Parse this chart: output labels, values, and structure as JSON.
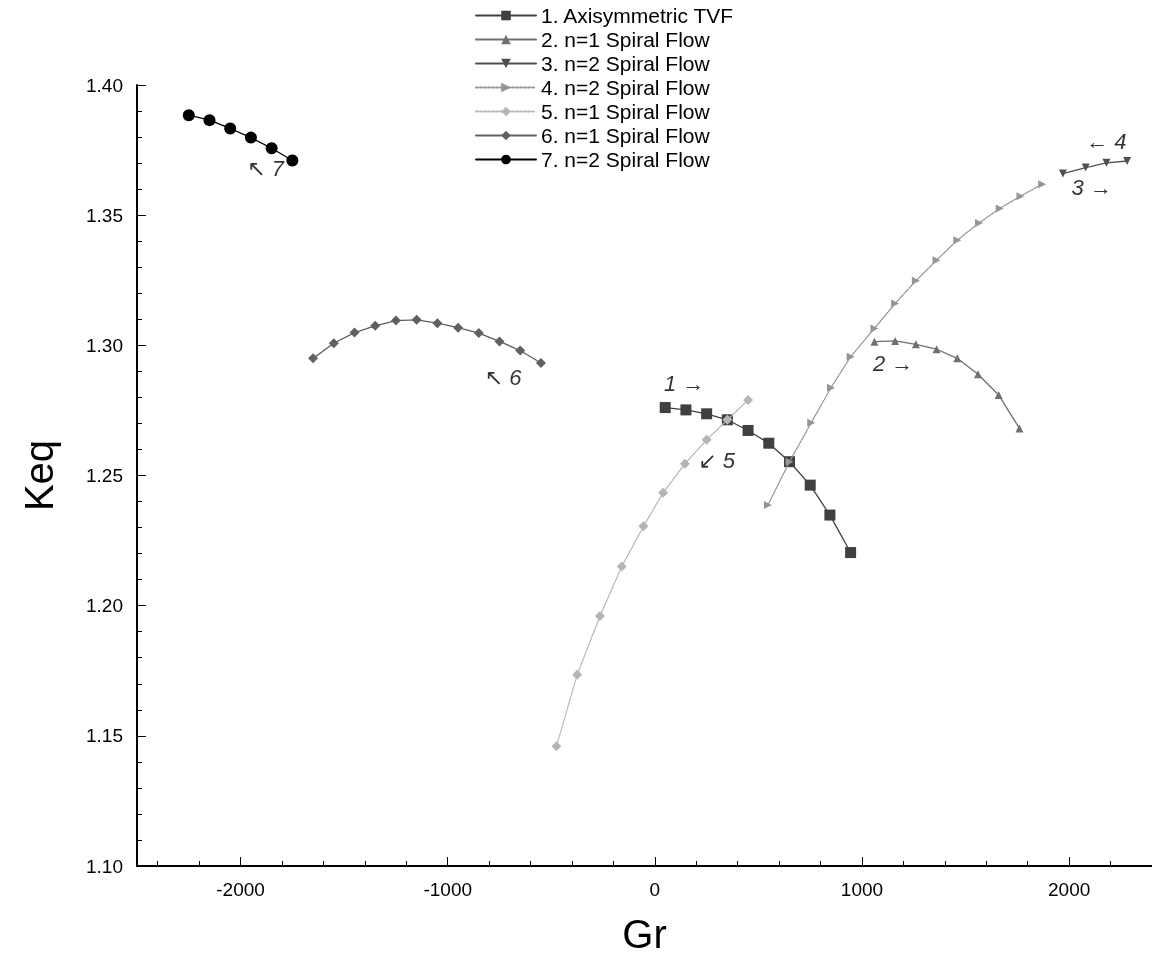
{
  "chart_data": {
    "type": "line",
    "xlabel": "Gr",
    "ylabel": "Keq",
    "xlim": [
      -2500,
      2400
    ],
    "xticks": [
      -2000,
      -1000,
      0,
      1000,
      2000
    ],
    "ylim": [
      1.1,
      1.4
    ],
    "yticks": [
      {
        "value": 1.1,
        "label": "1.10"
      },
      1.15,
      {
        "value": 1.2,
        "label": "1.20"
      },
      1.25,
      {
        "value": 1.3,
        "label": "1.30"
      },
      1.35,
      {
        "value": 1.4,
        "label": "1.40"
      }
    ],
    "grid": false,
    "legend": "top",
    "series": [
      {
        "name": "1. Axisymmetric TVF",
        "color": "#404040",
        "marker": "square",
        "line_style": "solid",
        "x": [
          50,
          150,
          250,
          350,
          450,
          550,
          650,
          750,
          845,
          945
        ],
        "values": [
          1.2761,
          1.2752,
          1.2737,
          1.2714,
          1.2673,
          1.2624,
          1.2553,
          1.2463,
          1.2348,
          1.2204
        ]
      },
      {
        "name": "2. n=1 Spiral Flow",
        "color": "#707070",
        "marker": "triangle",
        "line_style": "solid",
        "x": [
          1060,
          1160,
          1260,
          1360,
          1460,
          1560,
          1660,
          1760
        ],
        "values": [
          1.3014,
          1.3017,
          1.3004,
          1.2985,
          1.295,
          1.2889,
          1.2809,
          1.2681
        ]
      },
      {
        "name": "3. n=2 Spiral Flow",
        "color": "#505050",
        "marker": "triangle-down",
        "line_style": "solid",
        "x": [
          1970,
          2080,
          2180,
          2280
        ],
        "values": [
          1.366,
          1.3683,
          1.3701,
          1.3708
        ]
      },
      {
        "name": "4. n=2 Spiral Flow",
        "color": "#959595",
        "marker": "triangle-right",
        "line_style": "dotted",
        "x": [
          546,
          650,
          755,
          850,
          945,
          1060,
          1160,
          1260,
          1360,
          1460,
          1565,
          1665,
          1765,
          1870
        ],
        "values": [
          1.2387,
          1.2553,
          1.2703,
          1.2837,
          1.2956,
          1.3065,
          1.3161,
          1.3248,
          1.3327,
          1.3404,
          1.347,
          1.3526,
          1.3573,
          1.3619
        ]
      },
      {
        "name": "5. n=1 Spiral Flow",
        "color": "#b5b5b5",
        "marker": "diamond",
        "line_style": "dotted",
        "x": [
          450,
          350,
          250,
          145,
          40,
          -55,
          -160,
          -265,
          -375,
          -475
        ],
        "values": [
          1.279,
          1.2714,
          1.2637,
          1.2545,
          1.2434,
          1.2305,
          1.215,
          1.196,
          1.1735,
          1.146
        ]
      },
      {
        "name": "6. n=1 Spiral Flow",
        "color": "#606060",
        "marker": "diamond",
        "line_style": "solid",
        "x": [
          -1650,
          -1550,
          -1450,
          -1350,
          -1250,
          -1150,
          -1050,
          -950,
          -850,
          -750,
          -650,
          -550
        ],
        "values": [
          1.295,
          1.3008,
          1.3049,
          1.3075,
          1.3095,
          1.3098,
          1.3085,
          1.3068,
          1.3047,
          1.3015,
          1.298,
          1.2932
        ]
      },
      {
        "name": "7. n=2 Spiral Flow",
        "color": "#000000",
        "marker": "circle",
        "line_style": "solid",
        "x": [
          -2250,
          -2150,
          -2050,
          -1950,
          -1850,
          -1750
        ],
        "values": [
          1.3884,
          1.3865,
          1.3833,
          1.3798,
          1.3757,
          1.371
        ]
      }
    ],
    "annotations": [
      {
        "text": "1 →",
        "x": 50,
        "y": 1.2761
      },
      {
        "text": "2 →",
        "x": 1160,
        "y": 1.3017
      },
      {
        "text": "3 →",
        "x": 2080,
        "y": 1.3683
      },
      {
        "text": "← 4",
        "x": 2180,
        "y": 1.3701
      },
      {
        "text": "↙ 5",
        "x": 250,
        "y": 1.2637
      },
      {
        "text": "↖ 6",
        "x": -650,
        "y": 1.298
      },
      {
        "text": "↖ 7",
        "x": -1850,
        "y": 1.3757
      }
    ]
  }
}
